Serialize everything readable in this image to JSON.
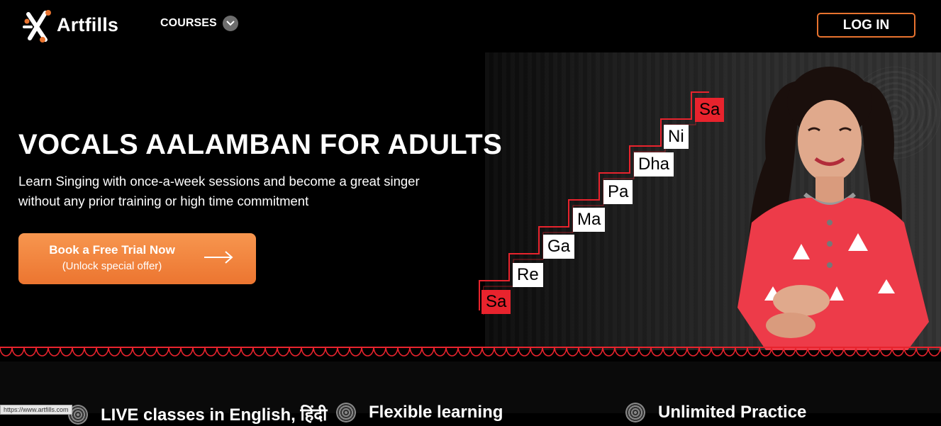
{
  "brand": {
    "name": "Artfills",
    "accent": "#e8732f",
    "note_red": "#e8232d"
  },
  "nav": {
    "courses_label": "COURSES",
    "login_label": "LOG IN"
  },
  "hero": {
    "title": "VOCALS AALAMBAN FOR ADULTS",
    "subtitle": "Learn Singing with once-a-week sessions and become a great singer without any prior training or high time commitment",
    "cta": {
      "line1": "Book a Free Trial Now",
      "line2": "(Unlock special offer)"
    },
    "notes": [
      "Sa",
      "Re",
      "Ga",
      "Ma",
      "Pa",
      "Dha",
      "Ni",
      "Sa"
    ]
  },
  "features": [
    {
      "label": "LIVE classes in English, हिंदी",
      "icon": "mandala-icon"
    },
    {
      "label": "Flexible learning",
      "icon": "mandala-icon"
    },
    {
      "label": "Unlimited Practice",
      "icon": "mandala-icon"
    }
  ],
  "status_bar": {
    "url": "https://www.artfills.com"
  }
}
